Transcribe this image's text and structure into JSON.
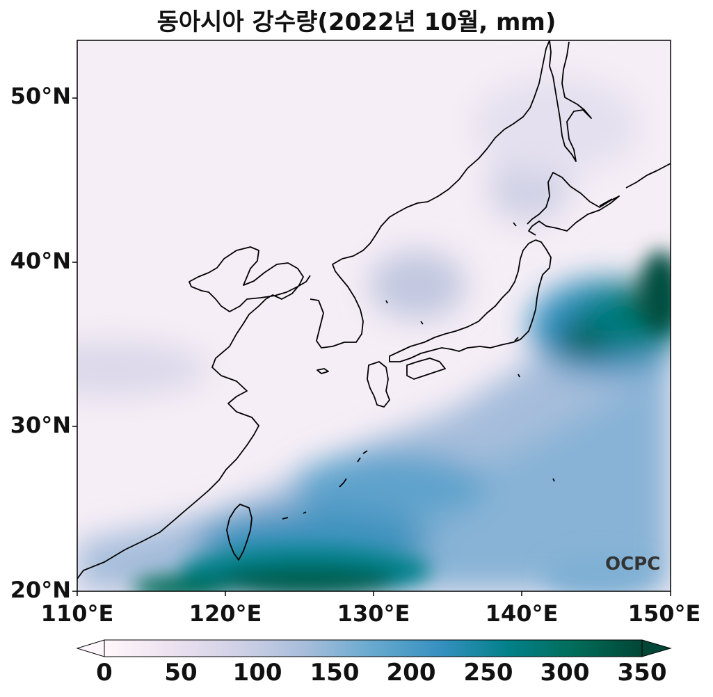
{
  "title": "동아시아 강수량(2022년 10월, mm)",
  "logo_text": "OCPC",
  "map": {
    "lon_range": [
      110,
      150
    ],
    "lat_range": [
      20,
      53.5
    ],
    "lat_ticks": [
      {
        "value": 20,
        "label": "20°N"
      },
      {
        "value": 30,
        "label": "30°N"
      },
      {
        "value": 40,
        "label": "40°N"
      },
      {
        "value": 50,
        "label": "50°N"
      }
    ],
    "lon_ticks": [
      {
        "value": 110,
        "label": "110°E"
      },
      {
        "value": 120,
        "label": "120°E"
      },
      {
        "value": 130,
        "label": "130°E"
      },
      {
        "value": 140,
        "label": "140°E"
      },
      {
        "value": 150,
        "label": "150°E"
      }
    ]
  },
  "colorbar": {
    "min": 0,
    "max": 350,
    "ticks": [
      "0",
      "50",
      "100",
      "150",
      "200",
      "250",
      "300",
      "350"
    ],
    "colors": [
      "#fff7fb",
      "#ece2f0",
      "#d0d1e6",
      "#a6bddb",
      "#67a9cf",
      "#3690c0",
      "#02818a",
      "#016c59",
      "#014636"
    ],
    "extend": "both"
  },
  "colors": {
    "coastline": "#000000",
    "low_precip": "#f7eef6",
    "high_precip": "#014636"
  }
}
